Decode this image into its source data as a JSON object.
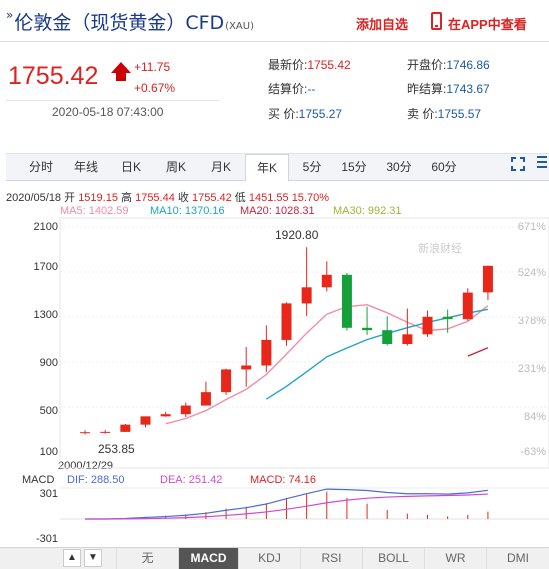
{
  "header": {
    "title_prefix": "»",
    "title": "伦敦金（现货黄金）CFD",
    "code": "(XAU)",
    "add_watch_label": "添加自选",
    "app_label": "在APP中查看"
  },
  "quote": {
    "price": "1755.42",
    "change": "+11.75",
    "change_pct": "+0.67%",
    "timestamp": "2020-05-18 07:43:00",
    "fields": {
      "latest_label": "最新价:",
      "latest": "1755.42",
      "open_label": "开盘价:",
      "open": "1746.86",
      "settle_label": "结算价:",
      "settle": "--",
      "prev_settle_label": "昨结算:",
      "prev_settle": "1743.67",
      "bid_label": "买  价:",
      "bid": "1755.27",
      "ask_label": "卖  价:",
      "ask": "1755.57"
    }
  },
  "tabs": [
    {
      "label": "分时"
    },
    {
      "label": "年线"
    },
    {
      "label": "日K"
    },
    {
      "label": "周K"
    },
    {
      "label": "月K"
    },
    {
      "label": "年K"
    },
    {
      "label": "5分"
    },
    {
      "label": "15分"
    },
    {
      "label": "30分"
    },
    {
      "label": "60分"
    }
  ],
  "active_tab": "年K",
  "ohlc": {
    "date": "2020/05/18",
    "open_label": "开",
    "open": "1519.15",
    "high_label": "高",
    "high": "1755.44",
    "close_label": "收",
    "close": "1755.42",
    "low_label": "低",
    "low": "1451.55",
    "change_pct": "15.70%"
  },
  "ma": {
    "ma5": "MA5: 1402.59",
    "ma10": "MA10: 1370.16",
    "ma20": "MA20: 1028.31",
    "ma30": "MA30: 992.31"
  },
  "colors": {
    "up": "#e8261a",
    "down": "#16a03a",
    "ma5": "#f28ca8",
    "ma10": "#20a4c4",
    "ma20": "#c8243a",
    "ma30": "#a8c840",
    "macd_dif": "#4a6cd4",
    "macd_dea": "#d04ad0",
    "accent": "#1a5aa8"
  },
  "chart_data": {
    "type": "candlestick",
    "yticks": [
      "2100",
      "1700",
      "1300",
      "900",
      "500",
      "100"
    ],
    "pct_ticks": [
      "671%",
      "524%",
      "378%",
      "231%",
      "84%",
      "-63%"
    ],
    "ylim": [
      100,
      2100
    ],
    "annotations": {
      "high": "1920.80",
      "low": "253.85",
      "start_date": "2000/12/29"
    },
    "watermark": "新浪财经",
    "candles": [
      {
        "o": 272,
        "h": 293,
        "l": 256,
        "c": 276
      },
      {
        "o": 277,
        "h": 295,
        "l": 264,
        "c": 279
      },
      {
        "o": 279,
        "h": 349,
        "l": 278,
        "c": 343
      },
      {
        "o": 343,
        "h": 416,
        "l": 319,
        "c": 417
      },
      {
        "o": 417,
        "h": 457,
        "l": 413,
        "c": 436
      },
      {
        "o": 436,
        "h": 540,
        "l": 411,
        "c": 513
      },
      {
        "o": 513,
        "h": 725,
        "l": 512,
        "c": 632
      },
      {
        "o": 632,
        "h": 841,
        "l": 608,
        "c": 834
      },
      {
        "o": 834,
        "h": 1033,
        "l": 681,
        "c": 869
      },
      {
        "o": 869,
        "h": 1226,
        "l": 810,
        "c": 1096
      },
      {
        "o": 1096,
        "h": 1431,
        "l": 1044,
        "c": 1421
      },
      {
        "o": 1421,
        "h": 1921,
        "l": 1308,
        "c": 1564
      },
      {
        "o": 1564,
        "h": 1796,
        "l": 1527,
        "c": 1675
      },
      {
        "o": 1675,
        "h": 1692,
        "l": 1180,
        "c": 1204
      },
      {
        "o": 1204,
        "h": 1392,
        "l": 1142,
        "c": 1183
      },
      {
        "o": 1183,
        "h": 1307,
        "l": 1046,
        "c": 1060
      },
      {
        "o": 1060,
        "h": 1375,
        "l": 1046,
        "c": 1146
      },
      {
        "o": 1146,
        "h": 1357,
        "l": 1123,
        "c": 1302
      },
      {
        "o": 1302,
        "h": 1366,
        "l": 1160,
        "c": 1281
      },
      {
        "o": 1281,
        "h": 1556,
        "l": 1266,
        "c": 1517
      },
      {
        "o": 1519,
        "h": 1755,
        "l": 1452,
        "c": 1755
      }
    ],
    "macd": {
      "dif_label": "DIF: 288.50",
      "dea_label": "DEA: 251.42",
      "macd_label": "MACD: 74.16",
      "yticks": [
        "301",
        "-301"
      ]
    }
  },
  "indicator_tabs": [
    "无",
    "MACD",
    "KDJ",
    "RSI",
    "BOLL",
    "WR",
    "DMI"
  ],
  "active_indicator": "MACD",
  "nav": {
    "up": "▲",
    "down": "▼"
  }
}
